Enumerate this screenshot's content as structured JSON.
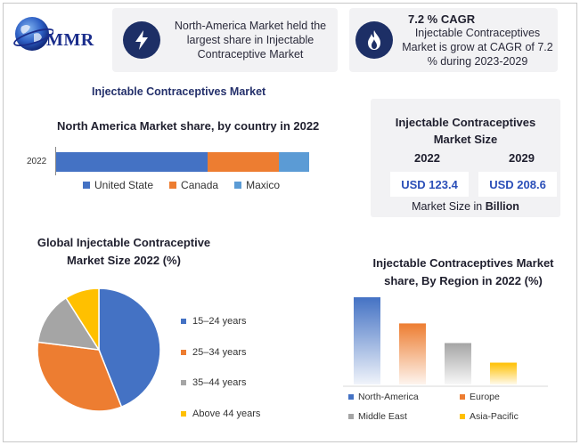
{
  "logo": {
    "text": "MMR"
  },
  "card_left": {
    "icon": "lightning-bolt-icon",
    "text": "North-America Market held the largest share in Injectable Contraceptive Market"
  },
  "card_right": {
    "icon": "flame-icon",
    "title": "7.2 % CAGR",
    "text": "Injectable Contraceptives Market is grow at CAGR of 7.2 % during 2023-2029"
  },
  "main_title": "Injectable Contraceptives Market",
  "market_size": {
    "title_line1": "Injectable Contraceptives",
    "title_line2": "Market Size",
    "year_a": "2022",
    "year_b": "2029",
    "value_a": "USD 123.4",
    "value_b": "USD 208.6",
    "unit_prefix": "Market Size in ",
    "unit_bold": "Billion"
  },
  "colors": {
    "blue": "#4472c4",
    "orange": "#ed7d31",
    "gray": "#a5a5a5",
    "yellow": "#ffc000",
    "light_blue": "#5b9bd5",
    "navy": "#1d2f66"
  },
  "chart_data": [
    {
      "type": "bar",
      "orientation": "horizontal-stacked",
      "title": "North America Market share, by country in 2022",
      "categories": [
        "2022"
      ],
      "series": [
        {
          "name": "United State",
          "values": [
            60
          ],
          "color": "#4472c4"
        },
        {
          "name": "Canada",
          "values": [
            28
          ],
          "color": "#ed7d31"
        },
        {
          "name": "Maxico",
          "values": [
            12
          ],
          "color": "#5b9bd5"
        }
      ],
      "legend": "bottom"
    },
    {
      "type": "pie",
      "title_line1": "Global Injectable Contraceptive",
      "title_line2": "Market  Size 2022 (%)",
      "slices": [
        {
          "name": "15–24 years",
          "value": 44,
          "color": "#4472c4"
        },
        {
          "name": "25–34 years",
          "value": 33,
          "color": "#ed7d31"
        },
        {
          "name": "35–44 years",
          "value": 14,
          "color": "#a5a5a5"
        },
        {
          "name": "Above 44 years",
          "value": 9,
          "color": "#ffc000"
        }
      ],
      "legend": "right"
    },
    {
      "type": "bar",
      "title_line1": "Injectable Contraceptives Market",
      "title_line2": "share, By Region in 2022 (%)",
      "categories": [
        "North-America",
        "Europe",
        "Middle East",
        "Asia-Pacific"
      ],
      "values": [
        40,
        28,
        19,
        10
      ],
      "colors": [
        "#4472c4",
        "#ed7d31",
        "#a5a5a5",
        "#ffc000"
      ],
      "legend": "bottom"
    }
  ]
}
